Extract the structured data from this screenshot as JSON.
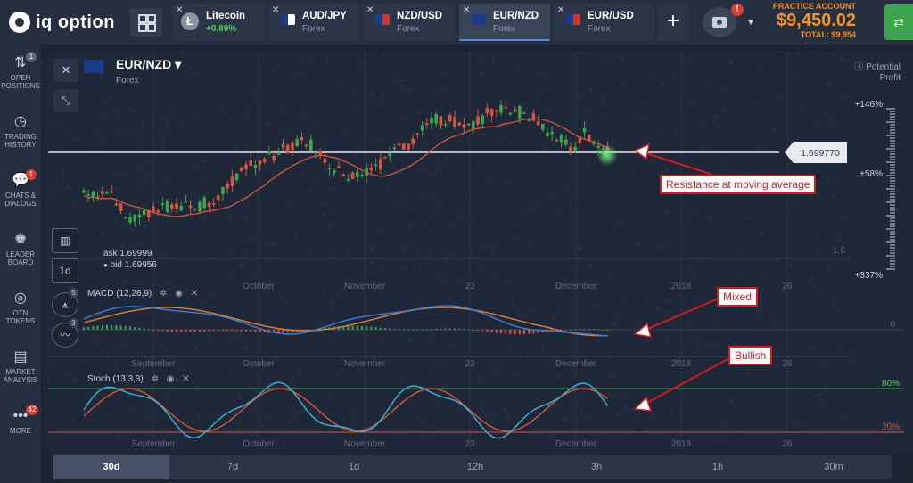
{
  "brand": {
    "name": "iq option"
  },
  "tabs": [
    {
      "name": "Litecoin",
      "sub": "+0.89%"
    },
    {
      "name": "AUD/JPY",
      "sub": "Forex"
    },
    {
      "name": "NZD/USD",
      "sub": "Forex"
    },
    {
      "name": "EUR/NZD",
      "sub": "Forex",
      "active": true
    },
    {
      "name": "EUR/USD",
      "sub": "Forex"
    }
  ],
  "camera_badge": "!",
  "account": {
    "label": "PRACTICE ACCOUNT",
    "balance": "$9,450.02",
    "total": "TOTAL: $9,954"
  },
  "sidebar": [
    {
      "label1": "OPEN",
      "label2": "POSITIONS",
      "badge": "1",
      "icon": "open-positions-icon"
    },
    {
      "label1": "TRADING",
      "label2": "HISTORY",
      "icon": "history-icon"
    },
    {
      "label1": "CHATS &",
      "label2": "DIALOGS",
      "badge": "1",
      "icon": "chat-icon"
    },
    {
      "label1": "LEADER",
      "label2": "BOARD",
      "icon": "leaderboard-icon"
    },
    {
      "label1": "OTN",
      "label2": "TOKENS",
      "icon": "token-icon"
    },
    {
      "label1": "MARKET",
      "label2": "ANALYSIS",
      "icon": "newspaper-icon"
    },
    {
      "label1": "MORE",
      "label2": "",
      "badge": "42",
      "icon": "more-icon"
    }
  ],
  "asset": {
    "name": "EUR/NZD",
    "type": "Forex"
  },
  "potential_profit": {
    "l1": "Potential",
    "l2": "Profit"
  },
  "profit_scale": {
    "top": "+146%",
    "mid": "+58%",
    "bot": "+337%"
  },
  "price_tag": "1.699770",
  "quote": {
    "ask": "ask 1.69999",
    "bid": "bid 1.69956"
  },
  "scale_label": "1.6",
  "tools": {
    "period": "1d",
    "indicators_count": "5",
    "figures_count": "3"
  },
  "months": [
    "September",
    "October",
    "November",
    "23",
    "December",
    "2018",
    "26"
  ],
  "macd": {
    "label": "MACD (12,26,9)",
    "zero": "0"
  },
  "stoch": {
    "label": "Stoch (13,3,3)",
    "upper": "80%",
    "lower": "20%"
  },
  "timeframes": [
    "30d",
    "7d",
    "1d",
    "12h",
    "3h",
    "1h",
    "30m"
  ],
  "annotations": {
    "resistance": "Resistance at moving average",
    "mixed": "Mixed",
    "bullish": "Bullish"
  }
}
